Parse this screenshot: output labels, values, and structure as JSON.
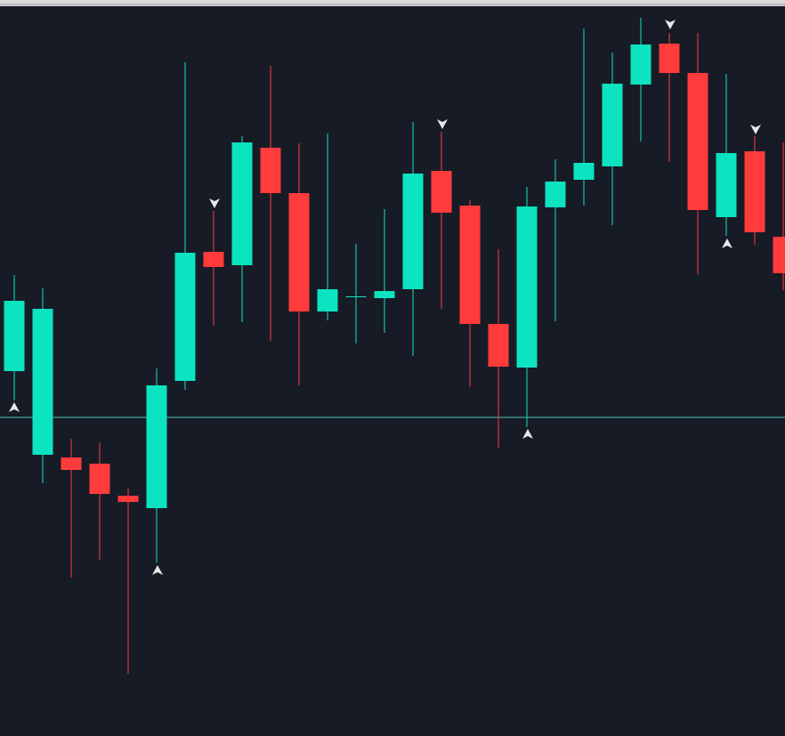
{
  "chart_data": {
    "type": "candlestick",
    "categories": [
      null,
      null,
      null,
      null,
      null,
      null,
      null,
      null,
      null,
      null,
      null,
      null,
      null,
      null,
      null,
      null,
      null,
      null,
      null,
      null,
      null,
      null,
      null,
      null,
      null,
      null,
      null,
      null
    ],
    "open": [
      410,
      316,
      313,
      306,
      270,
      256,
      399,
      544,
      529,
      661,
      610,
      477,
      493,
      492,
      502,
      635,
      596,
      463,
      414,
      594,
      625,
      640,
      732,
      778,
      745,
      583,
      657,
      561
    ],
    "high": [
      518,
      503,
      334,
      330,
      278,
      413,
      757,
      590,
      674,
      753,
      666,
      677,
      553,
      592,
      690,
      679,
      602,
      547,
      617,
      648,
      795,
      768,
      807,
      790,
      790,
      744,
      674,
      667
    ],
    "low": [
      377,
      284,
      178,
      198,
      70,
      195,
      389,
      461,
      465,
      444,
      394,
      467,
      441,
      453,
      427,
      480,
      392,
      324,
      347,
      466,
      596,
      574,
      668,
      645,
      519,
      562,
      552,
      501
    ],
    "close": [
      489,
      480,
      299,
      272,
      263,
      394,
      543,
      527,
      667,
      610,
      477,
      502,
      494,
      500,
      632,
      588,
      463,
      415,
      595,
      623,
      644,
      733,
      777,
      745,
      591,
      655,
      566,
      520
    ],
    "ylim": [
      0,
      827
    ],
    "up_color": "#0ce3c0",
    "down_color": "#ff3b3b",
    "reference_line": 358,
    "reference_color": "#4fc3b5"
  }
}
